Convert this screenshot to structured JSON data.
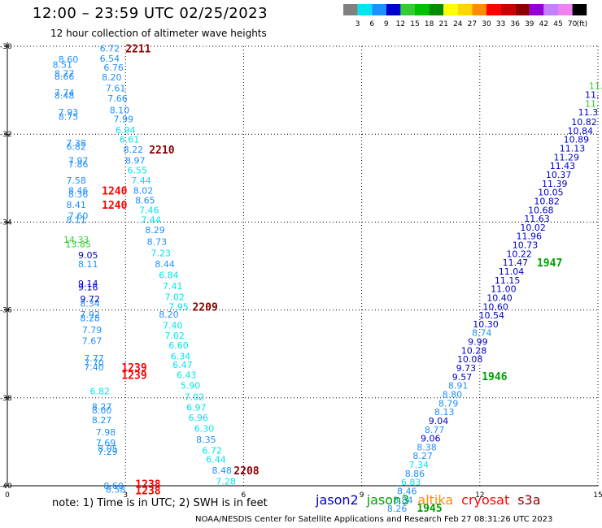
{
  "title": "12:00 – 23:59 UTC 02/25/2023",
  "subtitle": "12 hour collection of altimeter wave heights",
  "legend": {
    "labels": [
      "3",
      "6",
      "9",
      "12",
      "15",
      "18",
      "21",
      "24",
      "27",
      "30",
      "33",
      "36",
      "39",
      "42",
      "45",
      "70"
    ],
    "unit": "(ft)",
    "colors": [
      "#808080",
      "#00e5ee",
      "#1e90ff",
      "#0000cd",
      "#32cd32",
      "#00c000",
      "#008b00",
      "#ffff00",
      "#ffd700",
      "#ff8c00",
      "#ff0000",
      "#cd0000",
      "#8b0000",
      "#9400d3",
      "#c080ff",
      "#ee82ee",
      "#000000"
    ]
  },
  "note": "note:  1) Time is in UTC;  2) SWH is in feet",
  "satellites": [
    {
      "name": "jason2",
      "color": "#0000cd"
    },
    {
      "name": "jason3",
      "color": "#00a000"
    },
    {
      "name": "altika",
      "color": "#ff8c00"
    },
    {
      "name": "cryosat",
      "color": "#ff0000"
    },
    {
      "name": "s3a",
      "color": "#8b0000"
    }
  ],
  "credit": "NOAA/NESDIS Center for Satellite Applications and Research     Feb 27 08:31:26 UTC 2023",
  "chart_data": {
    "type": "scatter",
    "xlim": [
      0,
      15
    ],
    "ylim": [
      -40,
      -30
    ],
    "xticks": [
      "0",
      "3",
      "6",
      "9",
      "12",
      "15"
    ],
    "yticks": [
      "-30",
      "-32",
      "-34",
      "-36",
      "-38",
      "-40"
    ],
    "grid": true,
    "color_key": {
      "c": "#00e5ee",
      "b": "#1e90ff",
      "n": "#0000cd",
      "g": "#32cd32",
      "G": "#00a000"
    },
    "points": [
      [
        2.6,
        -30.05,
        "6.72",
        "b"
      ],
      [
        1.55,
        -30.3,
        "8.60",
        "b"
      ],
      [
        2.6,
        -30.28,
        "6.54",
        "b"
      ],
      [
        1.4,
        -30.42,
        "8.51",
        "b"
      ],
      [
        2.7,
        -30.48,
        "6.76",
        "b"
      ],
      [
        1.45,
        -30.62,
        "8.77",
        "b"
      ],
      [
        1.45,
        -30.68,
        "8.66",
        "b"
      ],
      [
        2.65,
        -30.7,
        "8.20",
        "b"
      ],
      [
        2.75,
        -30.95,
        "7.61",
        "b"
      ],
      [
        1.45,
        -31.05,
        "7.74",
        "b"
      ],
      [
        1.45,
        -31.12,
        "8.48",
        "b"
      ],
      [
        2.8,
        -31.18,
        "7.66",
        "b"
      ],
      [
        2.85,
        -31.45,
        "8.10",
        "b"
      ],
      [
        1.55,
        -31.5,
        "7.93",
        "b"
      ],
      [
        1.55,
        -31.6,
        "8.75",
        "b"
      ],
      [
        2.95,
        -31.65,
        "7.99",
        "b"
      ],
      [
        3.0,
        -31.9,
        "6.94",
        "c"
      ],
      [
        3.1,
        -32.12,
        "6.61",
        "c"
      ],
      [
        1.75,
        -32.2,
        "7.38",
        "b"
      ],
      [
        1.75,
        -32.28,
        "6.82",
        "b"
      ],
      [
        3.2,
        -32.35,
        "8.22",
        "b"
      ],
      [
        1.8,
        -32.6,
        "7.97",
        "b"
      ],
      [
        3.25,
        -32.6,
        "8.97",
        "b"
      ],
      [
        1.8,
        -32.68,
        "7.86",
        "b"
      ],
      [
        3.3,
        -32.82,
        "6.55",
        "c"
      ],
      [
        1.75,
        -33.05,
        "7.58",
        "b"
      ],
      [
        3.4,
        -33.05,
        "7.44",
        "c"
      ],
      [
        1.8,
        -33.28,
        "8.46",
        "b"
      ],
      [
        3.45,
        -33.28,
        "8.02",
        "b"
      ],
      [
        1.8,
        -33.36,
        "8.36",
        "b"
      ],
      [
        3.5,
        -33.5,
        "8.65",
        "b"
      ],
      [
        1.75,
        -33.6,
        "8.41",
        "b"
      ],
      [
        3.6,
        -33.72,
        "7.46",
        "c"
      ],
      [
        1.8,
        -33.85,
        "7.60",
        "b"
      ],
      [
        1.75,
        -33.95,
        "8.11",
        "b"
      ],
      [
        3.65,
        -33.95,
        "7.44",
        "c"
      ],
      [
        3.75,
        -34.18,
        "8.29",
        "b"
      ],
      [
        1.75,
        -34.4,
        "14.33",
        "g"
      ],
      [
        1.8,
        -34.5,
        "13.85",
        "g"
      ],
      [
        3.8,
        -34.45,
        "8.73",
        "b"
      ],
      [
        2.05,
        -34.75,
        "9.05",
        "n"
      ],
      [
        3.9,
        -34.7,
        "7.23",
        "c"
      ],
      [
        2.05,
        -34.95,
        "8.11",
        "b"
      ],
      [
        4.0,
        -34.95,
        "8.44",
        "b"
      ],
      [
        4.1,
        -35.2,
        "6.84",
        "c"
      ],
      [
        2.05,
        -35.4,
        "9.14",
        "n"
      ],
      [
        2.05,
        -35.48,
        "9.16",
        "n"
      ],
      [
        4.2,
        -35.45,
        "7.41",
        "c"
      ],
      [
        4.25,
        -35.7,
        "7.02",
        "c"
      ],
      [
        2.1,
        -35.75,
        "9.72",
        "n"
      ],
      [
        2.1,
        -35.85,
        "8.34",
        "b"
      ],
      [
        4.35,
        -35.92,
        "7.95",
        "c"
      ],
      [
        2.1,
        -36.1,
        "7.92",
        "b"
      ],
      [
        4.1,
        -36.1,
        "8.20",
        "b"
      ],
      [
        2.1,
        -36.18,
        "8.28",
        "b"
      ],
      [
        4.2,
        -36.35,
        "7.40",
        "c"
      ],
      [
        2.15,
        -36.45,
        "7.79",
        "b"
      ],
      [
        4.25,
        -36.58,
        "7.02",
        "c"
      ],
      [
        2.15,
        -36.7,
        "7.67",
        "b"
      ],
      [
        4.35,
        -36.8,
        "6.60",
        "c"
      ],
      [
        4.4,
        -37.05,
        "6.34",
        "c"
      ],
      [
        2.2,
        -37.1,
        "7.77",
        "b"
      ],
      [
        2.2,
        -37.2,
        "7.70",
        "b"
      ],
      [
        4.45,
        -37.25,
        "6.47",
        "c"
      ],
      [
        2.2,
        -37.3,
        "7.40",
        "b"
      ],
      [
        4.55,
        -37.48,
        "6.43",
        "c"
      ],
      [
        2.35,
        -37.85,
        "6.82",
        "c"
      ],
      [
        4.65,
        -37.72,
        "5.90",
        "c"
      ],
      [
        4.75,
        -37.98,
        "7.02",
        "c"
      ],
      [
        2.4,
        -38.2,
        "8.27",
        "b"
      ],
      [
        2.4,
        -38.28,
        "8.00",
        "b"
      ],
      [
        4.8,
        -38.22,
        "6.97",
        "c"
      ],
      [
        2.4,
        -38.5,
        "8.27",
        "b"
      ],
      [
        4.85,
        -38.45,
        "6.96",
        "c"
      ],
      [
        5.0,
        -38.7,
        "6.30",
        "c"
      ],
      [
        2.5,
        -38.78,
        "7.98",
        "b"
      ],
      [
        5.05,
        -38.95,
        "8.35",
        "b"
      ],
      [
        2.5,
        -39.02,
        "7.69",
        "b"
      ],
      [
        2.55,
        -39.15,
        "8.05",
        "b"
      ],
      [
        2.55,
        -39.22,
        "7.29",
        "b"
      ],
      [
        5.2,
        -39.2,
        "6.72",
        "c"
      ],
      [
        5.3,
        -39.4,
        "6.44",
        "c"
      ],
      [
        5.45,
        -39.65,
        "8.48",
        "b"
      ],
      [
        5.55,
        -39.9,
        "7.28",
        "c"
      ],
      [
        2.7,
        -40.0,
        "8.60",
        "b"
      ],
      [
        2.75,
        -40.08,
        "8.58",
        "b"
      ],
      [
        14.95,
        -30.9,
        "11.",
        "g"
      ],
      [
        14.85,
        -31.1,
        "11.",
        "n"
      ],
      [
        14.85,
        -31.3,
        "11.",
        "g"
      ],
      [
        14.75,
        -31.5,
        "11.3",
        "n"
      ],
      [
        14.65,
        -31.72,
        "10.82",
        "n"
      ],
      [
        14.55,
        -31.92,
        "10.84",
        "n"
      ],
      [
        14.45,
        -32.12,
        "10.89",
        "n"
      ],
      [
        14.35,
        -32.32,
        "11.13",
        "n"
      ],
      [
        14.2,
        -32.52,
        "11.29",
        "n"
      ],
      [
        14.1,
        -32.72,
        "11.43",
        "n"
      ],
      [
        14.0,
        -32.92,
        "10.37",
        "n"
      ],
      [
        13.9,
        -33.12,
        "11.39",
        "n"
      ],
      [
        13.8,
        -33.32,
        "10.05",
        "n"
      ],
      [
        13.7,
        -33.52,
        "10.82",
        "n"
      ],
      [
        13.55,
        -33.72,
        "10.68",
        "n"
      ],
      [
        13.45,
        -33.92,
        "11.63",
        "n"
      ],
      [
        13.35,
        -34.12,
        "10.02",
        "n"
      ],
      [
        13.25,
        -34.32,
        "11.96",
        "n"
      ],
      [
        13.15,
        -34.52,
        "10.73",
        "n"
      ],
      [
        13.0,
        -34.72,
        "10.22",
        "n"
      ],
      [
        12.9,
        -34.92,
        "11.47",
        "n"
      ],
      [
        12.8,
        -35.12,
        "11.04",
        "n"
      ],
      [
        12.7,
        -35.32,
        "11.15",
        "n"
      ],
      [
        12.6,
        -35.52,
        "11.00",
        "n"
      ],
      [
        12.5,
        -35.72,
        "10.40",
        "n"
      ],
      [
        12.4,
        -35.92,
        "10.60",
        "n"
      ],
      [
        12.3,
        -36.12,
        "10.54",
        "n"
      ],
      [
        12.15,
        -36.32,
        "10.30",
        "n"
      ],
      [
        12.05,
        -36.52,
        "8.74",
        "b"
      ],
      [
        11.95,
        -36.72,
        "9.99",
        "n"
      ],
      [
        11.85,
        -36.92,
        "10.28",
        "n"
      ],
      [
        11.75,
        -37.12,
        "10.08",
        "n"
      ],
      [
        11.65,
        -37.32,
        "9.73",
        "n"
      ],
      [
        11.55,
        -37.52,
        "9.57",
        "n"
      ],
      [
        11.45,
        -37.72,
        "8.91",
        "b"
      ],
      [
        11.3,
        -37.92,
        "8.80",
        "b"
      ],
      [
        11.2,
        -38.12,
        "8.79",
        "b"
      ],
      [
        11.1,
        -38.32,
        "8.13",
        "b"
      ],
      [
        10.95,
        -38.52,
        "9.04",
        "n"
      ],
      [
        10.85,
        -38.72,
        "8.77",
        "b"
      ],
      [
        10.75,
        -38.92,
        "9.06",
        "n"
      ],
      [
        10.65,
        -39.12,
        "8.38",
        "b"
      ],
      [
        10.55,
        -39.32,
        "8.27",
        "b"
      ],
      [
        10.45,
        -39.52,
        "7.34",
        "c"
      ],
      [
        10.35,
        -39.72,
        "8.86",
        "b"
      ],
      [
        10.25,
        -39.92,
        "6.83",
        "c"
      ],
      [
        10.15,
        -40.12,
        "8.46",
        "b"
      ],
      [
        10.05,
        -40.32,
        "8.84",
        "b"
      ],
      [
        9.9,
        -40.52,
        "8.26",
        "b"
      ]
    ],
    "time_labels": [
      [
        "2211",
        3.0,
        -30.05,
        "#8b0000"
      ],
      [
        "2210",
        3.6,
        -32.35,
        "#8b0000"
      ],
      [
        "1240",
        2.4,
        -33.28,
        "#ff0000"
      ],
      [
        "1240",
        2.4,
        -33.6,
        "#ff0000"
      ],
      [
        "2209",
        4.7,
        -35.92,
        "#8b0000"
      ],
      [
        "1947",
        13.45,
        -34.92,
        "#00a000"
      ],
      [
        "1239",
        2.9,
        -37.3,
        "#ff0000"
      ],
      [
        "1239",
        2.9,
        -37.48,
        "#ff0000"
      ],
      [
        "1946",
        12.05,
        -37.5,
        "#00a000"
      ],
      [
        "2208",
        5.75,
        -39.65,
        "#8b0000"
      ],
      [
        "1238",
        3.25,
        -39.95,
        "#ff0000"
      ],
      [
        "1238",
        3.25,
        -40.1,
        "#ff0000"
      ],
      [
        "1945",
        10.4,
        -40.5,
        "#00a000"
      ]
    ]
  }
}
